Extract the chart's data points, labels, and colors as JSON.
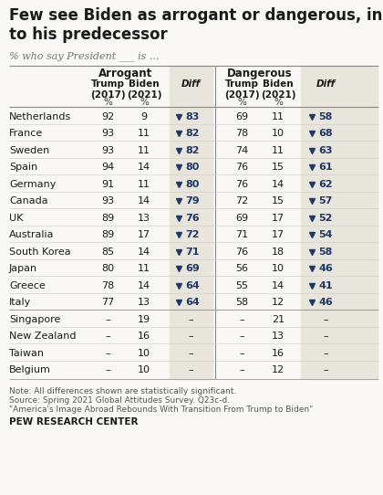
{
  "title": "Few see Biden as arrogant or dangerous, in contrast\nto his predecessor",
  "subtitle": "% who say President ___ is ...",
  "background_color": "#f9f8f4",
  "diff_col_bg": "#e8e5dd",
  "text_color": "#1a1a1a",
  "diff_color": "#1f3864",
  "triangle_color": "#1f3864",
  "line_color": "#aaaaaa",
  "note_color": "#555555",
  "countries": [
    "Netherlands",
    "France",
    "Sweden",
    "Spain",
    "Germany",
    "Canada",
    "UK",
    "Australia",
    "South Korea",
    "Japan",
    "Greece",
    "Italy",
    "Singapore",
    "New Zealand",
    "Taiwan",
    "Belgium"
  ],
  "arrogant_trump": [
    92,
    93,
    93,
    94,
    91,
    93,
    89,
    89,
    85,
    80,
    78,
    77,
    null,
    null,
    null,
    null
  ],
  "arrogant_biden": [
    9,
    11,
    11,
    14,
    11,
    14,
    13,
    17,
    14,
    11,
    14,
    13,
    19,
    16,
    10,
    10
  ],
  "arrogant_diff": [
    83,
    82,
    82,
    80,
    80,
    79,
    76,
    72,
    71,
    69,
    64,
    64,
    null,
    null,
    null,
    null
  ],
  "dangerous_trump": [
    69,
    78,
    74,
    76,
    76,
    72,
    69,
    71,
    76,
    56,
    55,
    58,
    null,
    null,
    null,
    null
  ],
  "dangerous_biden": [
    11,
    10,
    11,
    15,
    14,
    15,
    17,
    17,
    18,
    10,
    14,
    12,
    21,
    13,
    16,
    12
  ],
  "dangerous_diff": [
    58,
    68,
    63,
    61,
    62,
    57,
    52,
    54,
    58,
    46,
    41,
    46,
    null,
    null,
    null,
    null
  ],
  "note": "Note: All differences shown are statistically significant.",
  "source": "Source: Spring 2021 Global Attitudes Survey. Q23c-d.",
  "report": "\"America's Image Abroad Rebounds With Transition From Trump to Biden\"",
  "footer": "PEW RESEARCH CENTER",
  "fig_width": 4.2,
  "fig_height": 5.42,
  "dpi": 100
}
